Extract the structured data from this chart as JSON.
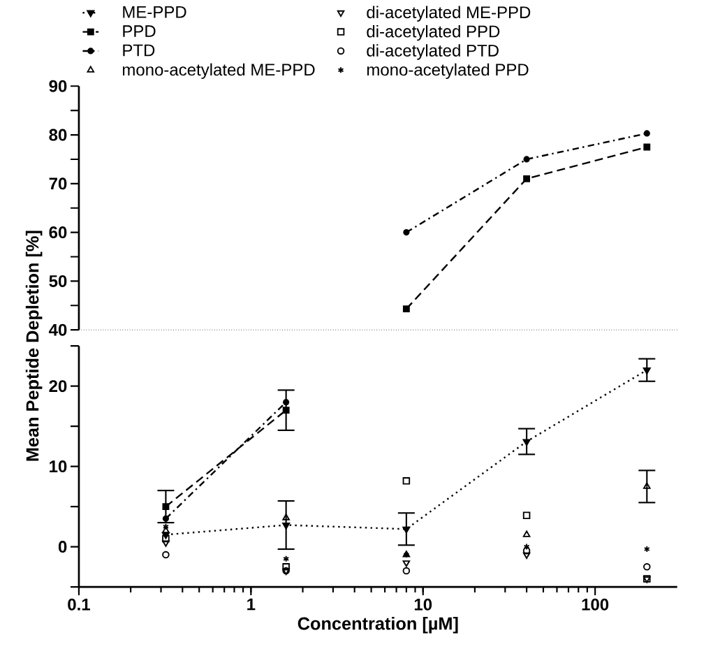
{
  "chart_data": [
    {
      "type": "line",
      "x": [
        8,
        40,
        200
      ],
      "log": "x",
      "xlim": [
        0.1,
        300
      ],
      "ylim": [
        40,
        90
      ],
      "tick_labels": "y",
      "legend": "top left",
      "yticks": [
        40,
        {
          "value": 45,
          "label": null
        },
        50,
        {
          "value": 55,
          "label": null
        },
        60,
        {
          "value": 65,
          "label": null
        },
        70,
        {
          "value": 75,
          "label": null
        },
        80,
        {
          "value": 85,
          "label": null
        },
        90
      ],
      "series": [
        {
          "name": "ME-PPD",
          "color": "#000000",
          "marker": "triangle-down",
          "line_style": "dotted",
          "values": [
            null,
            null,
            null
          ]
        },
        {
          "name": "di-acetylated ME-PPD",
          "type": "scatter",
          "color": "#000000",
          "marker": "triangle-down-open",
          "values": [
            null,
            null,
            null
          ]
        },
        {
          "name": "PPD",
          "color": "#000000",
          "marker": "square",
          "line_style": "dashed",
          "values": [
            44.3,
            71,
            77.5
          ]
        },
        {
          "name": "di-acetylated PPD",
          "type": "scatter",
          "color": "#000000",
          "marker": "square-open",
          "values": [
            null,
            null,
            null
          ]
        },
        {
          "name": "PTD",
          "color": "#000000",
          "marker": "circle",
          "line_style": "dashdot",
          "values": [
            60,
            75,
            80.3
          ]
        },
        {
          "name": "di-acetylated PTD",
          "type": "scatter",
          "color": "#000000",
          "marker": "circle-open",
          "values": [
            null,
            null,
            null
          ]
        },
        {
          "name": "mono-acetylated ME-PPD",
          "type": "scatter",
          "color": "#000000",
          "marker": "triangle-open",
          "values": [
            null,
            null,
            null
          ]
        },
        {
          "name": "mono-acetylated PPD",
          "type": "scatter",
          "color": "#000000",
          "marker": "cross",
          "values": [
            null,
            null,
            null
          ]
        }
      ]
    },
    {
      "type": "line",
      "x": [
        0.32,
        1.6,
        8,
        40,
        200
      ],
      "log": "x",
      "xlim": [
        0.1,
        300
      ],
      "ylim": [
        -5,
        25
      ],
      "xlabel": "Concentration [µM]",
      "ylabel": "Mean Peptide Depletion [%]",
      "xticks": [
        {
          "value": 0.1,
          "label": "0.1"
        },
        1,
        10,
        100
      ],
      "yticks": [
        {
          "value": -5,
          "label": null
        },
        0,
        {
          "value": 5,
          "label": null
        },
        10,
        {
          "value": 15,
          "label": null
        },
        20,
        {
          "value": 25,
          "label": null
        }
      ],
      "series": [
        {
          "color": "#000000",
          "marker": "triangle-down",
          "line_style": "dotted",
          "values": [
            1.5,
            2.7,
            2.2,
            13.1,
            22
          ],
          "errors": [
            null,
            3,
            2,
            1.6,
            1.4
          ]
        },
        {
          "type": "scatter",
          "color": "#000000",
          "marker": "triangle-down-open",
          "values": [
            0.5,
            -3,
            -2,
            -1,
            -4
          ]
        },
        {
          "color": "#000000",
          "marker": "square",
          "line_style": "dashed",
          "values": [
            5,
            17,
            null,
            null,
            null
          ],
          "errors": [
            2,
            2.5,
            null,
            null,
            null
          ]
        },
        {
          "type": "scatter",
          "color": "#000000",
          "marker": "square-open",
          "values": [
            1,
            -2.5,
            8.2,
            3.9,
            -4
          ]
        },
        {
          "color": "#000000",
          "marker": "circle",
          "line_style": "dashdot",
          "values": [
            3.5,
            18,
            null,
            null,
            null
          ]
        },
        {
          "type": "scatter",
          "color": "#000000",
          "marker": "circle-open",
          "values": [
            -1,
            -3,
            -3,
            -0.5,
            -2.5
          ]
        },
        {
          "type": "scatter",
          "color": "#000000",
          "marker": "triangle-open",
          "values": [
            2,
            3.6,
            -1,
            1.5,
            7.5
          ],
          "errors": [
            null,
            null,
            null,
            null,
            2
          ]
        },
        {
          "type": "scatter",
          "color": "#000000",
          "marker": "cross",
          "values": [
            2.5,
            -1.5,
            -1,
            0,
            -0.3
          ]
        }
      ]
    }
  ]
}
